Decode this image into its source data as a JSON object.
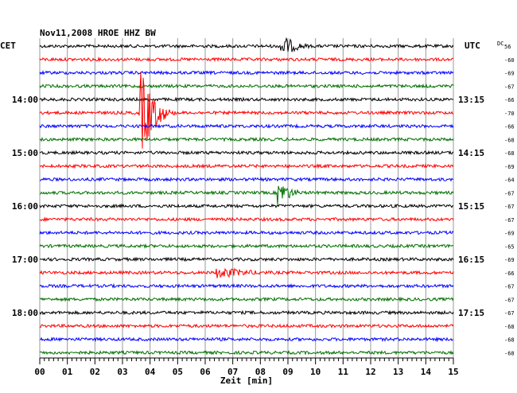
{
  "chart_data": {
    "type": "line",
    "title": "Nov11,2008   HROE HHZ BW",
    "left_timezone": "CET",
    "right_timezone": "UTC",
    "dc_header": "DC",
    "xlabel": "Zeit [min]",
    "xlim": [
      0,
      15
    ],
    "x_ticks": [
      "00",
      "01",
      "02",
      "03",
      "04",
      "05",
      "06",
      "07",
      "08",
      "09",
      "10",
      "11",
      "12",
      "13",
      "14",
      "15"
    ],
    "grid": true,
    "trace_colors": [
      "#000000",
      "#ff0000",
      "#0000ff",
      "#007000"
    ],
    "traces": [
      {
        "dc": "56",
        "left": "",
        "right": ""
      },
      {
        "dc": "-60",
        "left": "",
        "right": ""
      },
      {
        "dc": "-69",
        "left": "",
        "right": ""
      },
      {
        "dc": "-67",
        "left": "",
        "right": ""
      },
      {
        "dc": "-66",
        "left": "14:00",
        "right": "13:15"
      },
      {
        "dc": "-70",
        "left": "",
        "right": ""
      },
      {
        "dc": "-66",
        "left": "",
        "right": ""
      },
      {
        "dc": "-68",
        "left": "",
        "right": ""
      },
      {
        "dc": "-68",
        "left": "15:00",
        "right": "14:15"
      },
      {
        "dc": "-69",
        "left": "",
        "right": ""
      },
      {
        "dc": "-64",
        "left": "",
        "right": ""
      },
      {
        "dc": "-67",
        "left": "",
        "right": ""
      },
      {
        "dc": "-67",
        "left": "16:00",
        "right": "15:15"
      },
      {
        "dc": "-67",
        "left": "",
        "right": ""
      },
      {
        "dc": "-69",
        "left": "",
        "right": ""
      },
      {
        "dc": "-65",
        "left": "",
        "right": ""
      },
      {
        "dc": "-69",
        "left": "17:00",
        "right": "16:15"
      },
      {
        "dc": "-66",
        "left": "",
        "right": ""
      },
      {
        "dc": "-67",
        "left": "",
        "right": ""
      },
      {
        "dc": "-67",
        "left": "",
        "right": ""
      },
      {
        "dc": "-67",
        "left": "18:00",
        "right": "17:15"
      },
      {
        "dc": "-68",
        "left": "",
        "right": ""
      },
      {
        "dc": "-68",
        "left": "",
        "right": ""
      },
      {
        "dc": "-68",
        "left": "",
        "right": ""
      }
    ],
    "events": [
      {
        "trace": 0,
        "minute": 8.7,
        "duration": 1.3,
        "amplitude": 14
      },
      {
        "trace": 5,
        "minute": 3.6,
        "duration": 1.5,
        "amplitude": 55
      },
      {
        "trace": 11,
        "minute": 8.6,
        "duration": 1.1,
        "amplitude": 16
      },
      {
        "trace": 17,
        "minute": 6.4,
        "duration": 2.4,
        "amplitude": 6
      }
    ]
  }
}
